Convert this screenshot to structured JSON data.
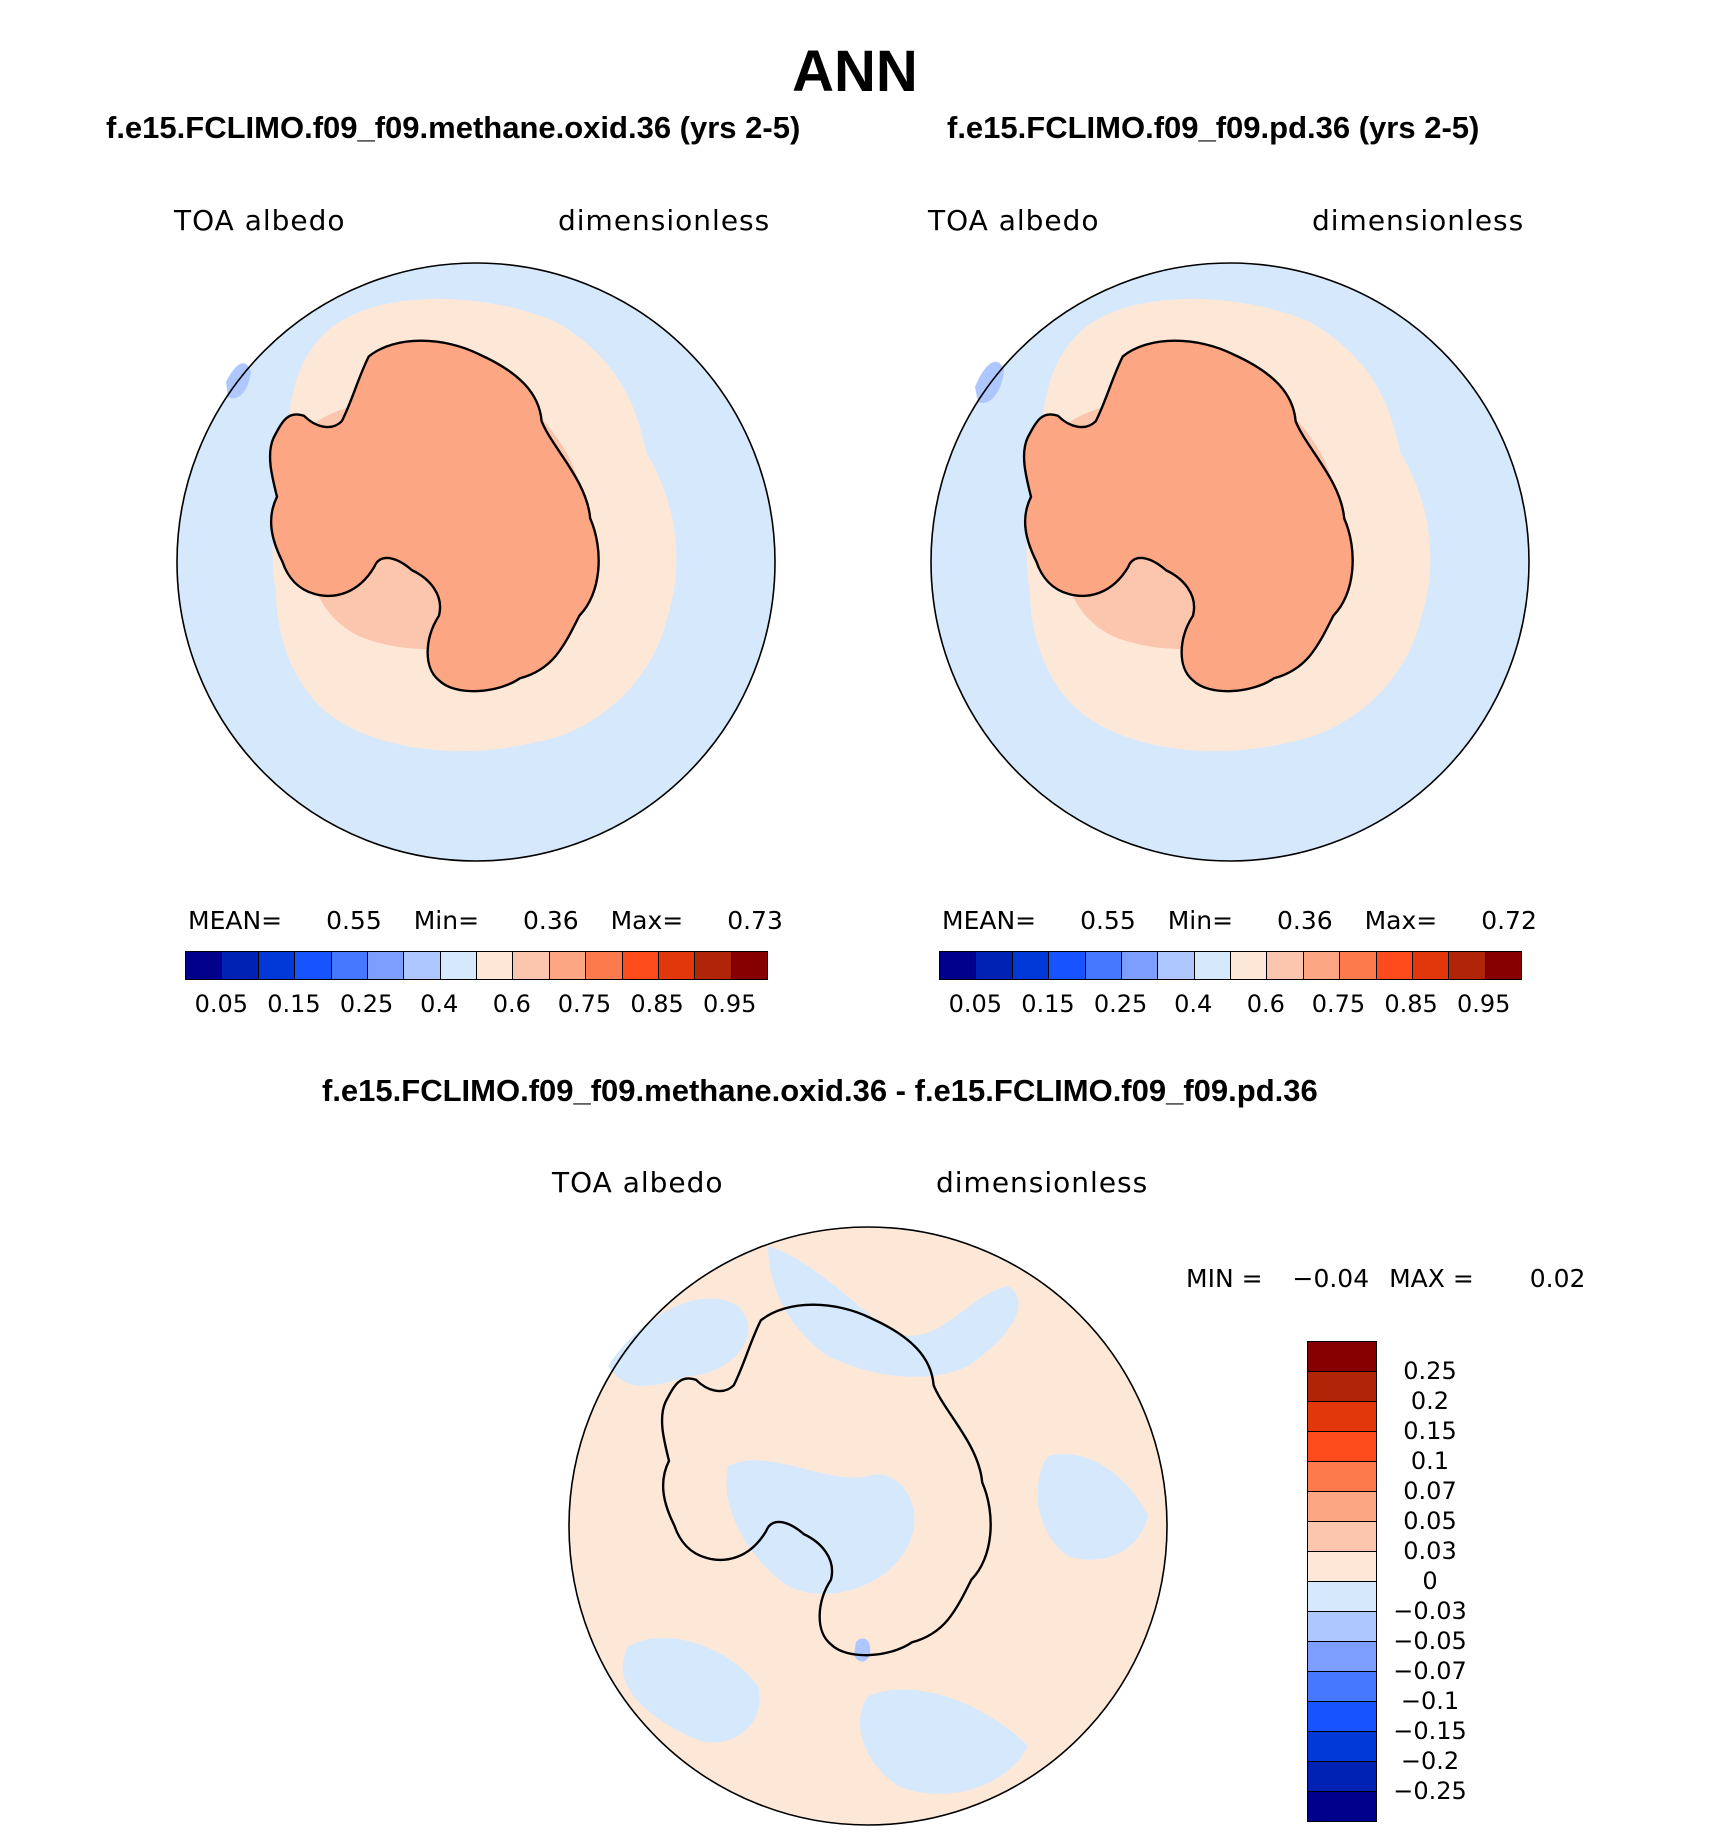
{
  "page": {
    "title": "ANN"
  },
  "panels": [
    {
      "case": "f.e15.FCLIMO.f09_f09.methane.oxid.36 (yrs 2-5)",
      "variable": "TOA albedo",
      "units": "dimensionless",
      "mean_label": "MEAN=",
      "mean": "0.55",
      "min_label": "Min=",
      "min": "0.36",
      "max_label": "Max=",
      "max": "0.73"
    },
    {
      "case": "f.e15.FCLIMO.f09_f09.pd.36 (yrs 2-5)",
      "variable": "TOA albedo",
      "units": "dimensionless",
      "mean_label": "MEAN=",
      "mean": "0.55",
      "min_label": "Min=",
      "min": "0.36",
      "max_label": "Max=",
      "max": "0.72"
    }
  ],
  "colorbar": {
    "colors": [
      "#00008c",
      "#0022b4",
      "#0039d8",
      "#1754ff",
      "#4677ff",
      "#7d9dff",
      "#aec7ff",
      "#d6e8fc",
      "#fde8d8",
      "#fcc5ae",
      "#fca684",
      "#fc7a4c",
      "#fd4b1c",
      "#e2370a",
      "#b02508",
      "#870000"
    ],
    "tick_labels": [
      "0.05",
      "0.15",
      "0.25",
      "0.4",
      "0.6",
      "0.75",
      "0.85",
      "0.95"
    ]
  },
  "difference": {
    "title": "f.e15.FCLIMO.f09_f09.methane.oxid.36 - f.e15.FCLIMO.f09_f09.pd.36",
    "variable": "TOA albedo",
    "units": "dimensionless",
    "min_label": "MIN =",
    "min": "−0.04",
    "max_label": "MAX =",
    "max": "0.02",
    "colorbar": {
      "colors": [
        "#870000",
        "#b02508",
        "#e2370a",
        "#fd4b1c",
        "#fc7a4c",
        "#fca684",
        "#fcc5ae",
        "#fde8d8",
        "#d6e8fc",
        "#aec7ff",
        "#7d9dff",
        "#4677ff",
        "#1754ff",
        "#0039d8",
        "#0022b4",
        "#00008c"
      ],
      "tick_labels": [
        "0.25",
        "0.2",
        "0.15",
        "0.1",
        "0.07",
        "0.05",
        "0.03",
        "0",
        "−0.03",
        "−0.05",
        "−0.07",
        "−0.1",
        "−0.15",
        "−0.2",
        "−0.25"
      ]
    }
  },
  "fills": {
    "ocean": "#d6e8fc",
    "light": "#fde8d8",
    "mid": "#fcc5ae",
    "high": "#fca684",
    "blue2": "#aec7ff",
    "blue3": "#7d9dff"
  }
}
